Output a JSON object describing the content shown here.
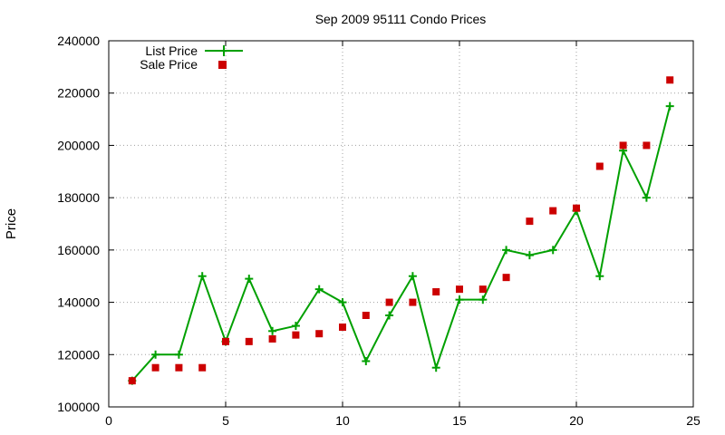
{
  "chart_data": {
    "type": "line",
    "title": "Sep 2009 95111 Condo Prices",
    "xlabel": "",
    "ylabel": "Price",
    "xlim": [
      0,
      25
    ],
    "ylim": [
      100000,
      240000
    ],
    "xticks": [
      0,
      5,
      10,
      15,
      20,
      25
    ],
    "yticks": [
      100000,
      120000,
      140000,
      160000,
      180000,
      200000,
      220000,
      240000
    ],
    "grid": true,
    "legend_position": "top-left",
    "x": [
      1,
      2,
      3,
      4,
      5,
      6,
      7,
      8,
      9,
      10,
      11,
      12,
      13,
      14,
      15,
      16,
      17,
      18,
      19,
      20,
      21,
      22,
      23,
      24
    ],
    "series": [
      {
        "name": "List Price",
        "style": "linespoints",
        "marker": "plus",
        "color": "#00a000",
        "values": [
          110000,
          120000,
          120000,
          150000,
          125000,
          149000,
          129000,
          131000,
          145000,
          140000,
          117500,
          135000,
          150000,
          115000,
          141000,
          141000,
          160000,
          158000,
          160000,
          175000,
          150000,
          198000,
          180000,
          215000
        ]
      },
      {
        "name": "Sale Price",
        "style": "points",
        "marker": "square",
        "color": "#cc0000",
        "values": [
          110000,
          115000,
          115000,
          115000,
          125000,
          125000,
          126000,
          127500,
          128000,
          130500,
          135000,
          140000,
          140000,
          144000,
          145000,
          145000,
          149500,
          171000,
          175000,
          176000,
          192000,
          200000,
          200000,
          225000
        ]
      }
    ]
  }
}
